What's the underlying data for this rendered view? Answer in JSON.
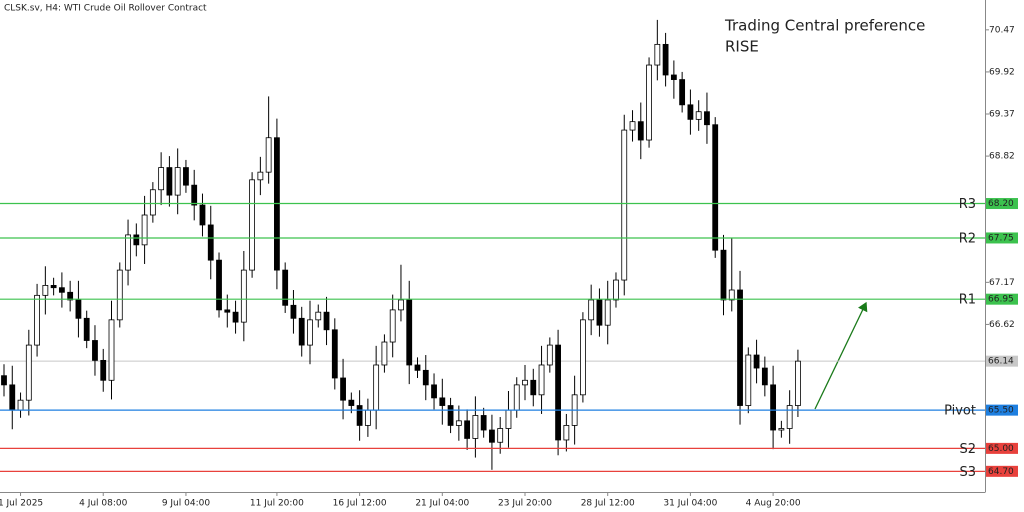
{
  "chart_data": {
    "type": "candlestick",
    "title": "CLSK.sv, H4:  WTI Crude Oil Rollover Contract",
    "annotations": [
      "Trading Central preference",
      "RISE"
    ],
    "annotation_color": "#3cc24e",
    "ylim": [
      64.43,
      70.86
    ],
    "yticks": [
      70.47,
      69.92,
      69.37,
      68.82,
      67.17,
      66.62
    ],
    "grid": false,
    "current_price": 66.14,
    "levels": [
      {
        "name": "R3",
        "value": 68.2,
        "value_label": "68.20",
        "color": "#3cc24e"
      },
      {
        "name": "R2",
        "value": 67.75,
        "value_label": "67.75",
        "color": "#3cc24e"
      },
      {
        "name": "R1",
        "value": 66.95,
        "value_label": "66.95",
        "color": "#3cc24e"
      },
      {
        "name": "Pivot",
        "value": 65.5,
        "value_label": "65.50",
        "color": "#1e7fe0"
      },
      {
        "name": "S2",
        "value": 65.0,
        "value_label": "65.00",
        "color": "#e8413c"
      },
      {
        "name": "S3",
        "value": 64.7,
        "value_label": "64.70",
        "color": "#e8413c"
      }
    ],
    "categories": [
      null,
      null,
      "1 Jul 2025",
      null,
      null,
      null,
      null,
      null,
      null,
      null,
      null,
      null,
      "4 Jul 08:00",
      null,
      null,
      null,
      null,
      null,
      null,
      null,
      null,
      null,
      "9 Jul 04:00",
      null,
      null,
      null,
      null,
      null,
      null,
      null,
      null,
      null,
      null,
      "11 Jul 20:00",
      null,
      null,
      null,
      null,
      null,
      null,
      null,
      null,
      null,
      "16 Jul 12:00",
      null,
      null,
      null,
      null,
      null,
      null,
      null,
      null,
      null,
      "21 Jul 04:00",
      null,
      null,
      null,
      null,
      null,
      null,
      null,
      null,
      null,
      "23 Jul 20:00",
      null,
      null,
      null,
      null,
      null,
      null,
      null,
      null,
      null,
      "28 Jul 12:00",
      null,
      null,
      null,
      null,
      null,
      null,
      null,
      null,
      null,
      "31 Jul 04:00",
      null,
      null,
      null,
      null,
      null,
      null,
      null,
      null,
      null,
      "4 Aug 20:00",
      null,
      null,
      null
    ],
    "open": [
      65.95,
      65.83,
      65.5,
      65.63,
      66.35,
      67.0,
      67.13,
      67.1,
      67.04,
      66.94,
      66.7,
      66.41,
      66.15,
      65.89,
      66.68,
      67.33,
      67.79,
      67.66,
      68.05,
      68.38,
      68.67,
      68.31,
      68.67,
      68.44,
      68.18,
      67.92,
      67.46,
      66.81,
      66.78,
      66.65,
      67.33,
      68.51,
      68.61,
      69.06,
      67.33,
      66.87,
      66.7,
      66.35,
      66.68,
      66.78,
      66.55,
      65.92,
      65.63,
      65.56,
      65.3,
      65.5,
      66.09,
      66.39,
      66.81,
      66.94,
      66.09,
      66.02,
      65.83,
      65.66,
      65.56,
      65.3,
      65.36,
      65.13,
      65.43,
      65.24,
      65.08,
      65.26,
      65.5,
      65.83,
      65.89,
      65.7,
      66.09,
      66.35,
      65.11,
      65.3,
      65.7,
      66.68,
      66.94,
      66.61,
      66.94,
      67.2,
      69.16,
      69.27,
      69.03,
      70.01,
      70.28,
      69.88,
      69.82,
      69.49,
      69.3,
      69.4,
      69.23,
      67.59,
      66.94,
      67.07,
      65.56,
      66.22,
      66.05,
      65.83,
      65.24,
      65.26,
      65.56
    ],
    "high": [
      66.1,
      66.08,
      65.73,
      66.55,
      67.15,
      67.38,
      67.23,
      67.3,
      67.19,
      67.19,
      66.8,
      66.61,
      66.3,
      66.93,
      67.43,
      67.99,
      67.94,
      68.3,
      68.48,
      68.87,
      68.82,
      68.92,
      68.77,
      68.64,
      68.33,
      68.17,
      67.56,
      67.01,
      66.93,
      67.58,
      68.61,
      68.81,
      69.6,
      69.31,
      67.43,
      67.07,
      66.85,
      66.93,
      66.88,
      66.98,
      66.7,
      66.17,
      65.73,
      65.76,
      65.65,
      66.34,
      66.49,
      67.01,
      67.4,
      67.19,
      66.19,
      66.22,
      65.98,
      65.91,
      65.66,
      65.56,
      65.51,
      65.68,
      65.53,
      65.44,
      65.41,
      65.75,
      65.93,
      66.09,
      66.04,
      66.34,
      66.45,
      66.55,
      65.45,
      65.95,
      66.78,
      67.14,
      67.09,
      67.19,
      67.3,
      69.36,
      69.42,
      69.52,
      70.11,
      70.6,
      70.43,
      70.07,
      69.92,
      69.69,
      69.55,
      69.65,
      69.33,
      67.79,
      67.75,
      67.32,
      66.32,
      66.42,
      66.2,
      66.08,
      65.36,
      65.76,
      66.29
    ],
    "low": [
      65.68,
      65.25,
      65.4,
      65.43,
      66.2,
      66.75,
      67.0,
      66.84,
      66.79,
      66.45,
      66.31,
      65.95,
      65.74,
      65.64,
      66.58,
      67.13,
      67.51,
      67.41,
      67.95,
      68.18,
      68.16,
      68.06,
      68.34,
      67.98,
      67.77,
      67.21,
      66.71,
      66.58,
      66.5,
      66.4,
      67.23,
      68.31,
      68.46,
      67.08,
      66.77,
      66.5,
      66.2,
      66.1,
      66.58,
      66.35,
      65.77,
      65.38,
      65.46,
      65.1,
      65.15,
      65.25,
      65.99,
      66.19,
      66.66,
      65.84,
      65.92,
      65.63,
      65.51,
      65.31,
      65.2,
      65.1,
      64.98,
      64.88,
      65.14,
      64.72,
      64.93,
      65.01,
      65.4,
      65.63,
      65.55,
      65.45,
      65.99,
      64.91,
      64.96,
      65.05,
      65.6,
      66.48,
      66.46,
      66.36,
      66.84,
      67.0,
      69.01,
      68.78,
      68.93,
      69.81,
      69.73,
      69.57,
      69.39,
      69.1,
      69.15,
      68.98,
      67.49,
      66.74,
      66.79,
      65.31,
      65.46,
      65.85,
      65.68,
      64.99,
      65.14,
      65.06,
      65.41
    ],
    "close": [
      65.83,
      65.5,
      65.63,
      66.35,
      67.0,
      67.13,
      67.1,
      67.04,
      66.94,
      66.7,
      66.41,
      66.15,
      65.89,
      66.68,
      67.33,
      67.79,
      67.66,
      68.05,
      68.38,
      68.67,
      68.31,
      68.67,
      68.44,
      68.18,
      67.92,
      67.46,
      66.81,
      66.78,
      66.65,
      67.33,
      68.51,
      68.61,
      69.06,
      67.33,
      66.87,
      66.7,
      66.35,
      66.68,
      66.78,
      66.55,
      65.92,
      65.63,
      65.56,
      65.3,
      65.5,
      66.09,
      66.39,
      66.81,
      66.94,
      66.09,
      66.02,
      65.83,
      65.66,
      65.56,
      65.3,
      65.36,
      65.13,
      65.43,
      65.24,
      65.08,
      65.26,
      65.5,
      65.83,
      65.89,
      65.7,
      66.09,
      66.35,
      65.11,
      65.3,
      65.7,
      66.68,
      66.94,
      66.61,
      66.94,
      67.2,
      69.16,
      69.27,
      69.03,
      70.01,
      70.28,
      69.88,
      69.82,
      69.49,
      69.3,
      69.4,
      69.23,
      67.59,
      66.94,
      67.07,
      65.56,
      66.22,
      66.05,
      65.83,
      65.24,
      65.26,
      65.56,
      66.14
    ]
  }
}
